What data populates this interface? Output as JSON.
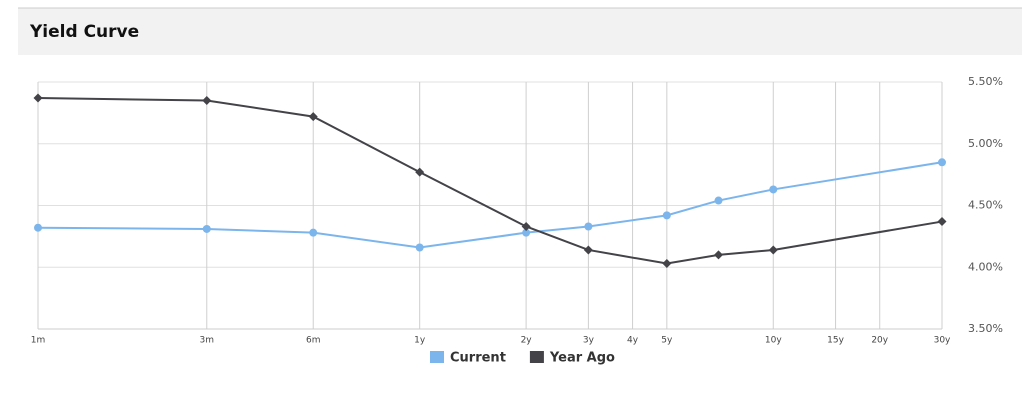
{
  "chart_data": {
    "type": "line",
    "title": "Yield Curve",
    "x": [
      0.0833,
      0.25,
      0.5,
      1,
      2,
      3,
      5,
      7,
      10,
      30
    ],
    "xscale": "log",
    "xlim": [
      0.0833,
      30
    ],
    "xticks": [
      {
        "value": 0.0833,
        "label": "1m"
      },
      {
        "value": 0.25,
        "label": "3m"
      },
      {
        "value": 0.5,
        "label": "6m"
      },
      {
        "value": 1,
        "label": "1y"
      },
      {
        "value": 2,
        "label": "2y"
      },
      {
        "value": 3,
        "label": "3y"
      },
      {
        "value": 4,
        "label": "4y"
      },
      {
        "value": 5,
        "label": "5y"
      },
      {
        "value": 10,
        "label": "10y"
      },
      {
        "value": 15,
        "label": "15y"
      },
      {
        "value": 20,
        "label": "20y"
      },
      {
        "value": 30,
        "label": "30y"
      }
    ],
    "ylim": [
      3.5,
      5.5
    ],
    "yticks": [
      {
        "value": 3.5,
        "label": "3.50%"
      },
      {
        "value": 4.0,
        "label": "4.00%"
      },
      {
        "value": 4.5,
        "label": "4.50%"
      },
      {
        "value": 5.0,
        "label": "5.00%"
      },
      {
        "value": 5.5,
        "label": "5.50%"
      }
    ],
    "grid": true,
    "legend": "bottom",
    "series": [
      {
        "name": "Current",
        "color": "#7cb5ec",
        "marker": "circle",
        "values": [
          4.32,
          4.31,
          4.28,
          4.16,
          4.28,
          4.33,
          4.42,
          4.54,
          4.63,
          4.85
        ]
      },
      {
        "name": "Year Ago",
        "color": "#434348",
        "marker": "diamond",
        "values": [
          5.37,
          5.35,
          5.22,
          4.77,
          4.33,
          4.14,
          4.03,
          4.1,
          4.14,
          4.37
        ]
      }
    ]
  }
}
